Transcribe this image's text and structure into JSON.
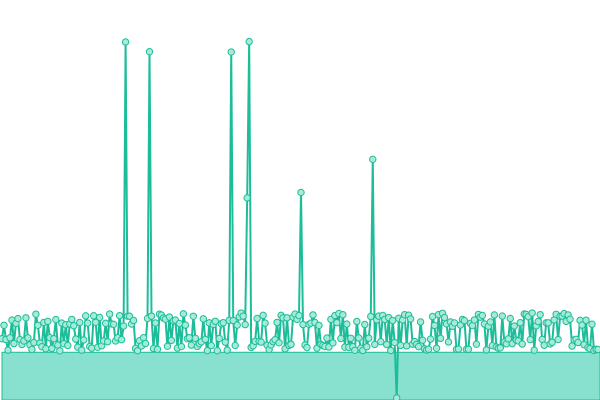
{
  "chart_data": {
    "type": "line",
    "title": "",
    "xlabel": "",
    "ylabel": "",
    "grid": false,
    "legend": "none",
    "ylim": [
      0,
      100
    ],
    "point_count": 300,
    "baseline_fill_level": 12.7,
    "noise_band": [
      13.1,
      23.6
    ],
    "noise_seed": 7,
    "spikes": [
      {
        "x": 62,
        "y": 98.9
      },
      {
        "x": 74,
        "y": 96.2
      },
      {
        "x": 115,
        "y": 96.1
      },
      {
        "x": 123,
        "y": 55.6
      },
      {
        "x": 124,
        "y": 99.0
      },
      {
        "x": 150,
        "y": 57.1
      },
      {
        "x": 186,
        "y": 66.3
      },
      {
        "x": 198,
        "y": 0.0
      }
    ],
    "colors": {
      "line": "#1dbd9a",
      "marker_fill": "#a6ebd7",
      "marker_stroke": "#1dbd9a",
      "area": "#88e1cf"
    }
  }
}
